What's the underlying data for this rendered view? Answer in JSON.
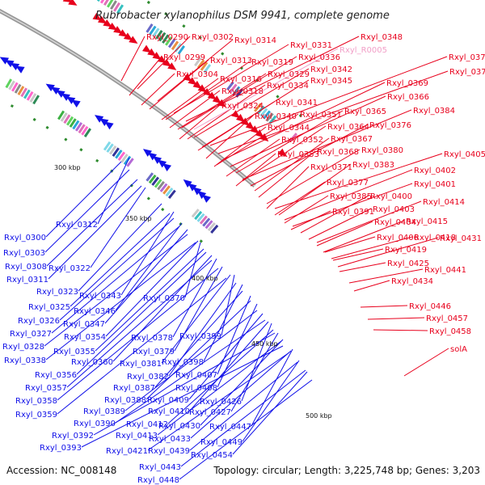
{
  "title": "Rubrobacter xylanophilus DSM 9941, complete genome",
  "accession": "Accession: NC_008148",
  "summary": "Topology: circular; Length: 3,225,748 bp; Genes: 3,203",
  "colors": {
    "forward": "#e8001c",
    "reverse": "#1010e8",
    "rna": "#f2a0c8",
    "backbone": "#999999"
  },
  "ticks": [
    "300 kbp",
    "350 kbp",
    "400 kbp",
    "450 kbp",
    "500 kbp"
  ],
  "labels": {
    "forward": [
      "Rxyl_0290",
      "Rxyl_0302",
      "Rxyl_0314",
      "Rxyl_0331",
      "Rxyl_0348",
      "Rxyl_0299",
      "Rxyl_0313",
      "Rxyl_0319",
      "Rxyl_0336",
      "Rxyl_0304",
      "Rxyl_0316",
      "Rxyl_0329",
      "Rxyl_0342",
      "Rxyl_0373",
      "Rxyl_0318",
      "Rxyl_0334",
      "Rxyl_0345",
      "Rxyl_0372",
      "Rxyl_0369",
      "Rxyl_0324",
      "Rxyl_0341",
      "Rxyl_0366",
      "Rxyl_0340",
      "Rxyl_0351",
      "Rxyl_0365",
      "Rxyl_0384",
      "Rxyl_0344",
      "Rxyl_0364",
      "Rxyl_0376",
      "Rxyl_0352",
      "Rxyl_0367",
      "Rxyl_0353",
      "Rxyl_0368",
      "Rxyl_0380",
      "Rxyl_0405",
      "Rxyl_0371",
      "Rxyl_0383",
      "Rxyl_0402",
      "Rxyl_0377",
      "Rxyl_0401",
      "Rxyl_0385",
      "Rxyl_0400",
      "Rxyl_0403",
      "Rxyl_0414",
      "Rxyl_0391",
      "Rxyl_0404",
      "Rxyl_0415",
      "Rxyl_0406",
      "Rxyl_0418",
      "Rxyl_0431",
      "Rxyl_0419",
      "Rxyl_0425",
      "Rxyl_0441",
      "Rxyl_0434",
      "Rxyl_0446",
      "Rxyl_0457",
      "Rxyl_0458",
      "solA"
    ],
    "rna": [
      "Rxyl_R0005"
    ],
    "reverse": [
      "Rxyl_0312",
      "Rxyl_0300",
      "Rxyl_0303",
      "Rxyl_0308",
      "Rxyl_0322",
      "Rxyl_0311",
      "Rxyl_0323",
      "Rxyl_0343",
      "Rxyl_0370",
      "Rxyl_0325",
      "Rxyl_0346",
      "Rxyl_0326",
      "Rxyl_0347",
      "Rxyl_0327",
      "Rxyl_0354",
      "Rxyl_0378",
      "Rxyl_0399",
      "Rxyl_0328",
      "Rxyl_0355",
      "Rxyl_0379",
      "Rxyl_0338",
      "Rxyl_0360",
      "Rxyl_0381",
      "Rxyl_0398",
      "Rxyl_0356",
      "Rxyl_0382",
      "Rxyl_0407",
      "Rxyl_0357",
      "Rxyl_0387",
      "Rxyl_0408",
      "Rxyl_0358",
      "Rxyl_0388",
      "Rxyl_0409",
      "Rxyl_0426",
      "Rxyl_0359",
      "Rxyl_0389",
      "Rxyl_0410",
      "Rxyl_0427",
      "Rxyl_0390",
      "Rxyl_0412",
      "Rxyl_0430",
      "Rxyl_0447",
      "Rxyl_0392",
      "Rxyl_0413",
      "Rxyl_0433",
      "Rxyl_0449",
      "Rxyl_0393",
      "Rxyl_0421",
      "Rxyl_0439",
      "Rxyl_0454",
      "Rxyl_0443",
      "Rxyl_0448"
    ]
  }
}
